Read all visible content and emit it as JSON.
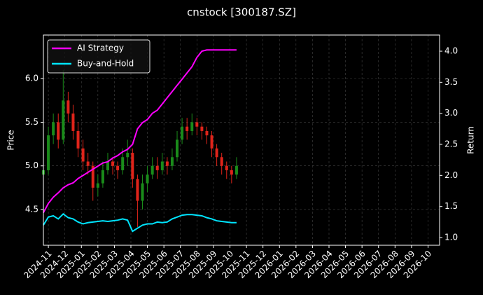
{
  "chart_data": {
    "type": "candlestick",
    "title": "cnstock [300187.SZ]",
    "ylabel": "Price",
    "y2label": "Return",
    "grid": true,
    "legend": "upper left",
    "up_color": "#1a8c1a",
    "down_color": "#e0241a",
    "xlim": [
      -0.3,
      23.7
    ],
    "xticks": [
      {
        "value": 0,
        "label": "2024-11"
      },
      {
        "value": 1,
        "label": "2024-12"
      },
      {
        "value": 2,
        "label": "2025-01"
      },
      {
        "value": 3,
        "label": "2025-02"
      },
      {
        "value": 4,
        "label": "2025-03"
      },
      {
        "value": 5,
        "label": "2025-04"
      },
      {
        "value": 6,
        "label": "2025-05"
      },
      {
        "value": 7,
        "label": "2025-06"
      },
      {
        "value": 8,
        "label": "2025-07"
      },
      {
        "value": 9,
        "label": "2025-08"
      },
      {
        "value": 10,
        "label": "2025-09"
      },
      {
        "value": 11,
        "label": "2025-10"
      },
      {
        "value": 12,
        "label": "2025-11"
      },
      {
        "value": 13,
        "label": "2025-12"
      },
      {
        "value": 14,
        "label": "2026-01"
      },
      {
        "value": 15,
        "label": "2026-02"
      },
      {
        "value": 16,
        "label": "2026-03"
      },
      {
        "value": 17,
        "label": "2026-04"
      },
      {
        "value": 18,
        "label": "2026-05"
      },
      {
        "value": 19,
        "label": "2026-06"
      },
      {
        "value": 20,
        "label": "2026-07"
      },
      {
        "value": 21,
        "label": "2026-08"
      },
      {
        "value": 22,
        "label": "2026-09"
      },
      {
        "value": 23,
        "label": "2026-10"
      }
    ],
    "ylim": [
      4.09,
      6.5
    ],
    "yticks": [
      4.5,
      5.0,
      5.5,
      6.0
    ],
    "y2lim": [
      0.876,
      4.26
    ],
    "y2ticks": [
      1.0,
      1.5,
      2.0,
      2.5,
      3.0,
      3.5,
      4.0
    ],
    "x": [
      -0.3,
      0,
      0.3,
      0.6,
      0.9,
      1.2,
      1.5,
      1.8,
      2.1,
      2.4,
      2.7,
      3,
      3.3,
      3.6,
      3.9,
      4.2,
      4.5,
      4.8,
      5.1,
      5.4,
      5.7,
      6,
      6.3,
      6.6,
      6.9,
      7.2,
      7.5,
      7.8,
      8.1,
      8.4,
      8.7,
      9,
      9.3,
      9.6,
      9.9,
      10.2,
      10.5,
      10.8,
      11.1,
      11.4
    ],
    "open": [
      4.9,
      4.95,
      5.35,
      5.5,
      5.3,
      5.75,
      5.6,
      5.4,
      5.2,
      5.05,
      5.0,
      4.75,
      4.8,
      4.95,
      5.05,
      5.0,
      4.95,
      5.1,
      5.15,
      4.85,
      4.6,
      4.8,
      4.9,
      5.0,
      4.95,
      5.05,
      5.0,
      5.1,
      5.3,
      5.45,
      5.4,
      5.5,
      5.45,
      5.4,
      5.35,
      5.2,
      5.1,
      5.0,
      4.95,
      4.9
    ],
    "high": [
      5.05,
      5.45,
      5.6,
      5.6,
      6.1,
      5.85,
      5.7,
      5.5,
      5.3,
      5.15,
      5.05,
      4.9,
      5.05,
      5.15,
      5.1,
      5.05,
      5.2,
      5.3,
      5.2,
      4.9,
      4.9,
      5.0,
      5.1,
      5.1,
      5.15,
      5.1,
      5.2,
      5.4,
      5.55,
      5.55,
      5.6,
      5.55,
      5.5,
      5.45,
      5.4,
      5.25,
      5.15,
      5.05,
      5.0,
      5.1
    ],
    "low": [
      4.85,
      4.9,
      5.25,
      5.2,
      5.25,
      5.5,
      5.3,
      5.1,
      4.95,
      4.9,
      4.6,
      4.65,
      4.75,
      4.9,
      4.9,
      4.85,
      4.9,
      5.0,
      4.75,
      4.3,
      4.5,
      4.7,
      4.85,
      4.85,
      4.9,
      4.9,
      4.95,
      5.05,
      5.25,
      5.3,
      5.35,
      5.35,
      5.3,
      5.25,
      5.1,
      5.0,
      4.9,
      4.85,
      4.8,
      4.85
    ],
    "close": [
      4.95,
      5.35,
      5.5,
      5.3,
      5.75,
      5.6,
      5.4,
      5.2,
      5.05,
      5.0,
      4.75,
      4.8,
      4.95,
      5.05,
      5.0,
      4.95,
      5.1,
      5.15,
      4.85,
      4.6,
      4.8,
      4.9,
      5.0,
      4.95,
      5.05,
      5.0,
      5.1,
      5.3,
      5.45,
      5.4,
      5.5,
      5.45,
      5.4,
      5.35,
      5.2,
      5.1,
      5.0,
      4.95,
      4.9,
      5.0
    ],
    "series": [
      {
        "name": "AI Strategy",
        "color": "#ff00ff",
        "axis": "y2",
        "values": [
          1.4,
          1.55,
          1.65,
          1.72,
          1.8,
          1.85,
          1.88,
          1.95,
          2.0,
          2.05,
          2.1,
          2.15,
          2.2,
          2.22,
          2.28,
          2.32,
          2.38,
          2.42,
          2.5,
          2.75,
          2.85,
          2.9,
          3.0,
          3.05,
          3.15,
          3.25,
          3.35,
          3.45,
          3.55,
          3.65,
          3.75,
          3.9,
          4.0,
          4.02,
          4.02,
          4.02,
          4.02,
          4.02,
          4.02,
          4.02
        ]
      },
      {
        "name": "Buy-and-Hold",
        "color": "#00e5ff",
        "axis": "y2",
        "values": [
          1.2,
          1.33,
          1.35,
          1.3,
          1.38,
          1.32,
          1.3,
          1.25,
          1.22,
          1.24,
          1.25,
          1.26,
          1.27,
          1.26,
          1.27,
          1.28,
          1.3,
          1.28,
          1.1,
          1.15,
          1.2,
          1.22,
          1.22,
          1.25,
          1.24,
          1.25,
          1.3,
          1.33,
          1.36,
          1.37,
          1.37,
          1.36,
          1.35,
          1.32,
          1.3,
          1.27,
          1.26,
          1.25,
          1.24,
          1.24
        ]
      }
    ]
  }
}
